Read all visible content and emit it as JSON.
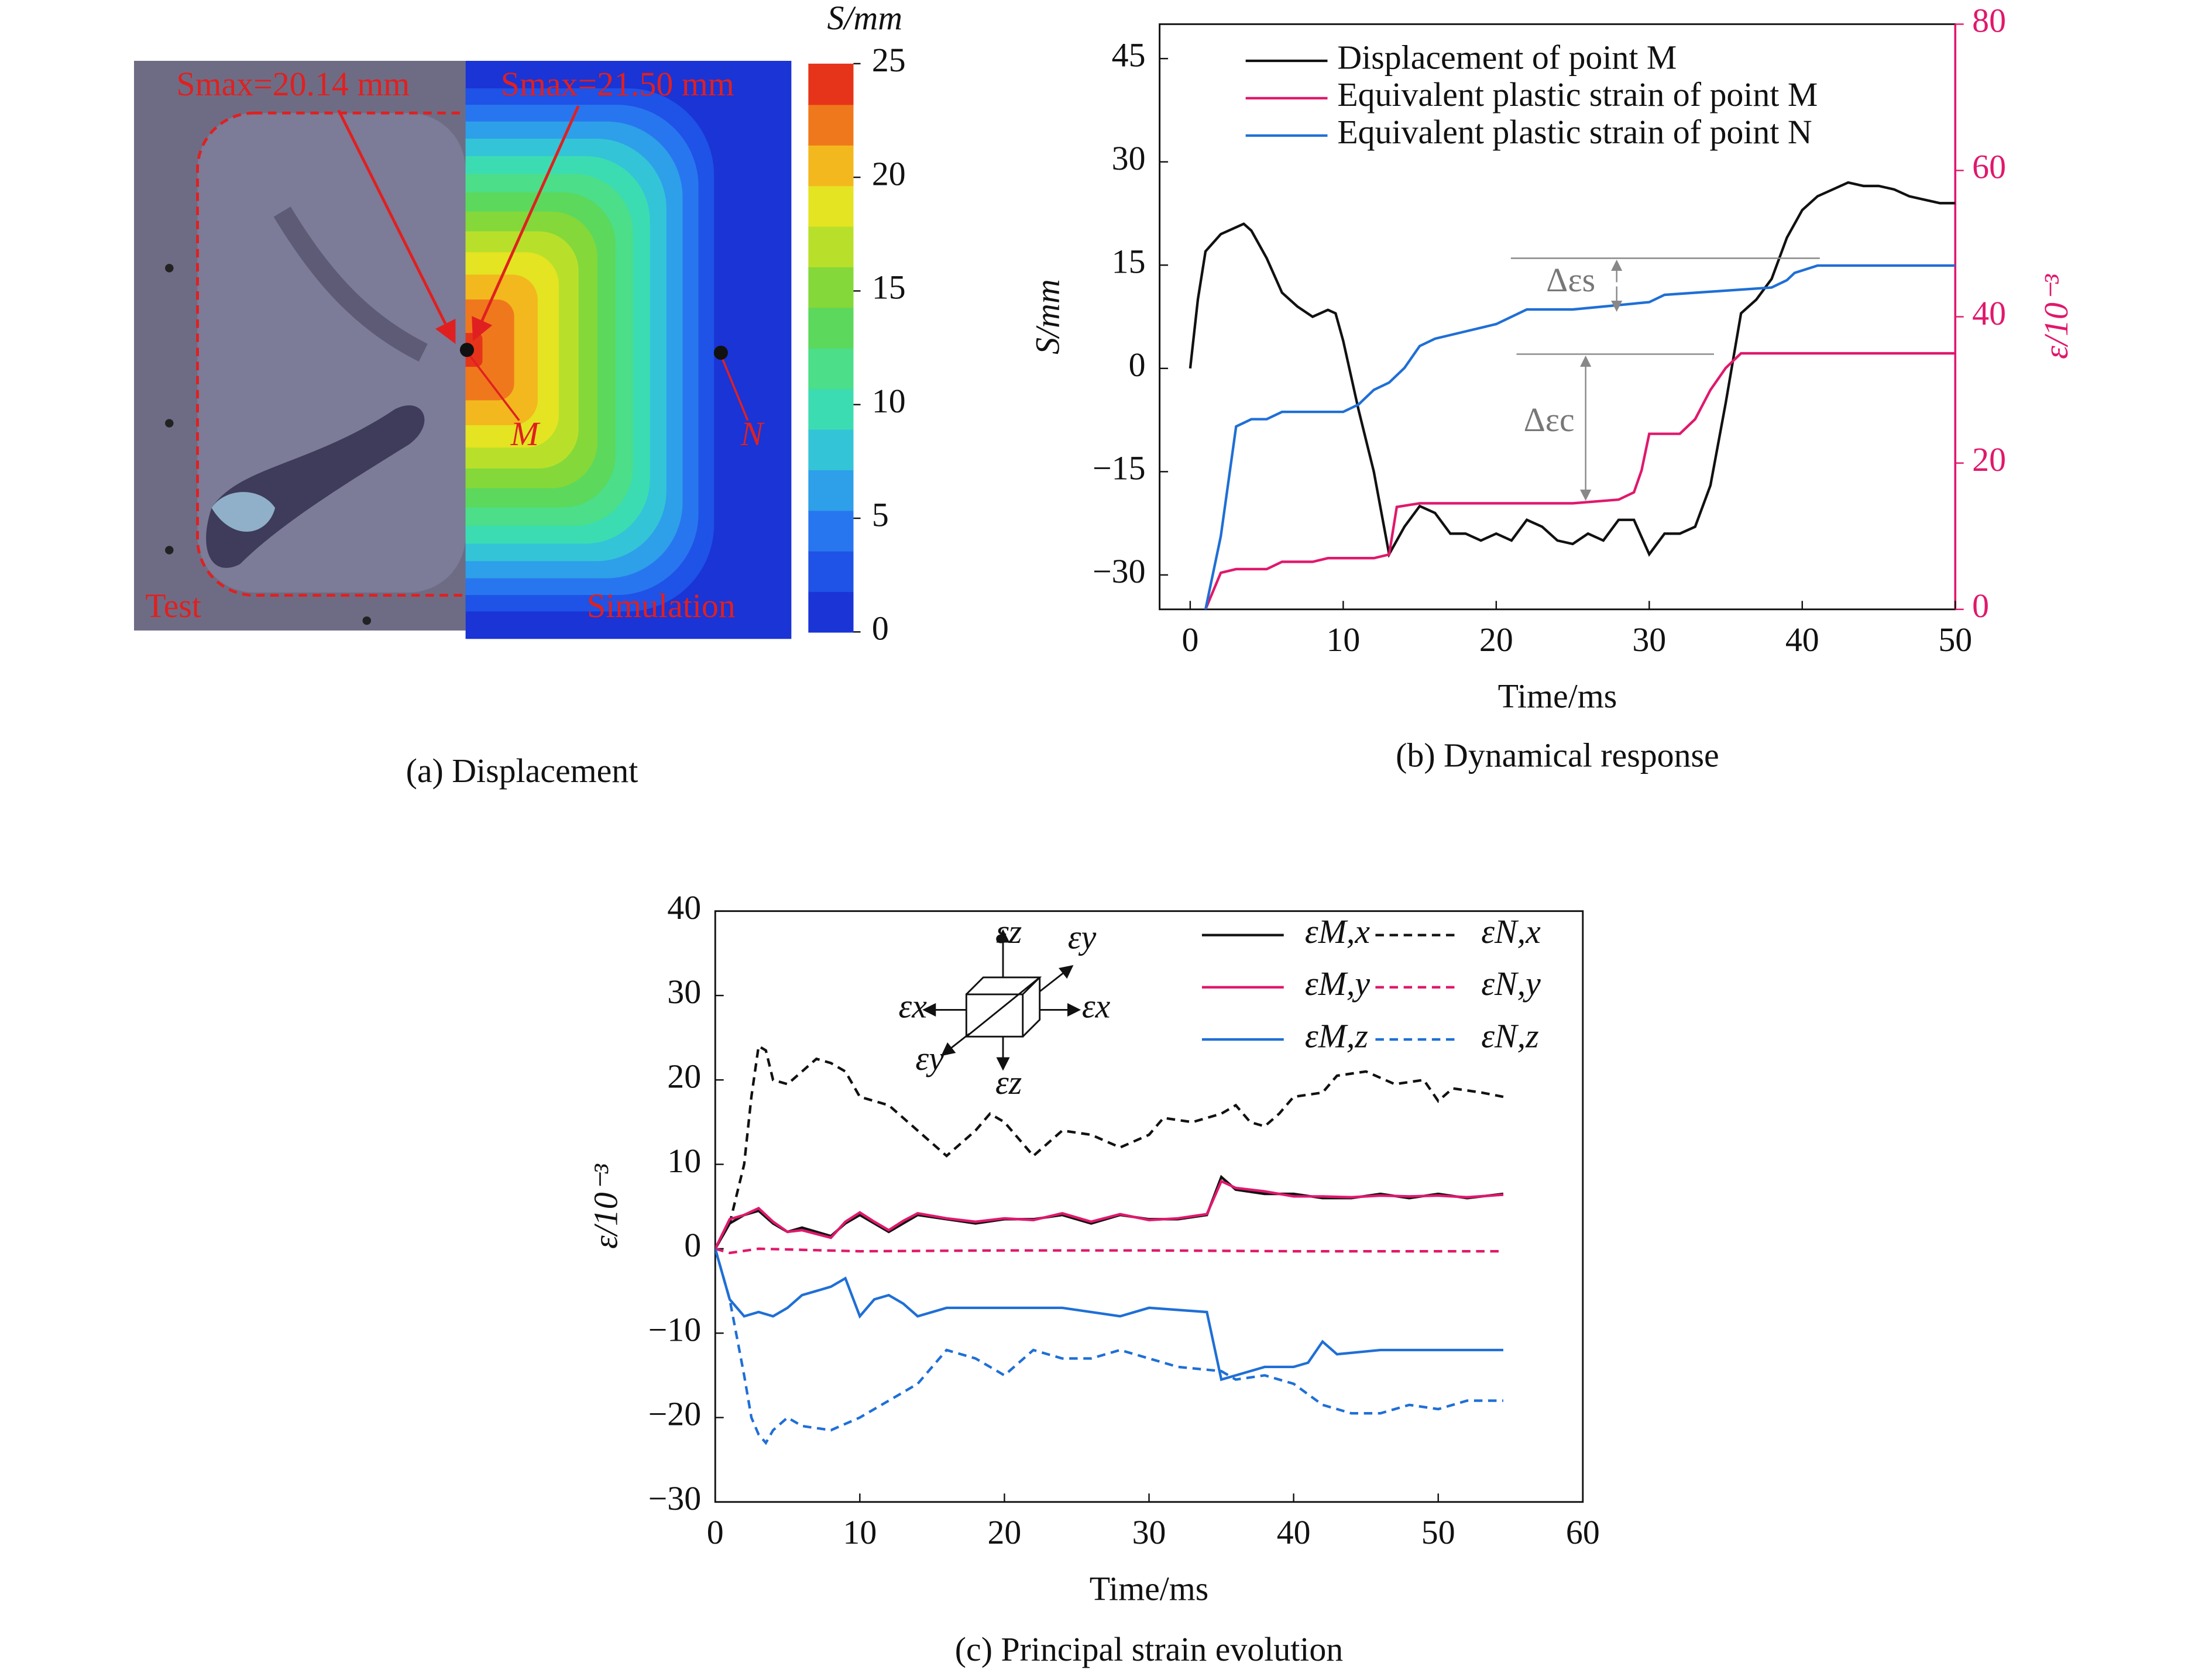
{
  "chart_data": [
    {
      "type": "contour",
      "caption": "(a) Displacement",
      "colorbar_title": "S/mm",
      "clim": [
        0,
        25
      ],
      "cticks": [
        0,
        5,
        10,
        15,
        20,
        25
      ],
      "colors": [
        "#1a34d6",
        "#1f52e6",
        "#2876ef",
        "#2e9fe9",
        "#33c4d8",
        "#3cdcb2",
        "#4cde88",
        "#5cd85c",
        "#84d83a",
        "#b8e02a",
        "#e4e422",
        "#f2b81e",
        "#f0781c",
        "#e6341a"
      ],
      "labels": {
        "test": "Test",
        "simulation": "Simulation",
        "point_m": "M",
        "point_n": "N"
      },
      "annotations": [
        "Smax=20.14 mm",
        "Smax=21.50 mm"
      ]
    },
    {
      "type": "line",
      "caption": "(b) Dynamical response",
      "xlabel": "Time/ms",
      "ylabel": "S/mm",
      "y2label": "ε/10⁻³",
      "xlim": [
        -2,
        50
      ],
      "xticks": [
        0,
        10,
        20,
        30,
        40,
        50
      ],
      "ylim": [
        -35,
        50
      ],
      "yticks": [
        {
          "value": -30,
          "label": "−30"
        },
        {
          "value": -15,
          "label": "−15"
        },
        0,
        15,
        30,
        45
      ],
      "y2lim": [
        0,
        80
      ],
      "y2ticks": [
        0,
        20,
        40,
        60,
        80
      ],
      "y2color": "#e0186c",
      "annotations": [
        "Δεs",
        "Δεc"
      ],
      "series": [
        {
          "name": "Displacement of point M",
          "color": "#111111",
          "x": [
            0,
            0.5,
            1,
            2,
            3.5,
            4,
            5,
            6,
            7,
            8,
            9,
            9.5,
            10,
            11,
            12,
            13,
            14,
            15,
            16,
            17,
            18,
            19,
            20,
            21,
            22,
            23,
            24,
            25,
            26,
            27,
            28,
            29,
            30,
            31,
            32,
            33,
            34,
            35,
            36,
            37,
            38,
            39,
            40,
            41,
            42,
            43,
            44,
            45,
            46,
            47,
            48,
            49,
            50
          ],
          "values": [
            0,
            10,
            17,
            19.5,
            21,
            20,
            16,
            11,
            9,
            7.5,
            8.5,
            8,
            4,
            -6,
            -15,
            -27,
            -23,
            -20,
            -21,
            -24,
            -24,
            -25,
            -24,
            -25,
            -22,
            -23,
            -25,
            -25.5,
            -24,
            -25,
            -22,
            -22,
            -27,
            -24,
            -24,
            -23,
            -17,
            -5,
            8,
            10,
            13,
            19,
            23,
            25,
            26,
            27,
            26.5,
            26.5,
            26,
            25,
            24.5,
            24,
            24
          ]
        },
        {
          "name": "Equivalent plastic strain of point M",
          "color": "#e0186c",
          "axis": "y2",
          "x": [
            1,
            2,
            3,
            5,
            6,
            8,
            9,
            12,
            13,
            13.5,
            15,
            25,
            28,
            29,
            29.5,
            30,
            32,
            33,
            34,
            35,
            36,
            50
          ],
          "values": [
            0,
            5,
            5.5,
            5.5,
            6.5,
            6.5,
            7,
            7,
            7.5,
            14,
            14.5,
            14.5,
            15,
            16,
            19,
            24,
            24,
            26,
            30,
            33,
            35,
            35
          ]
        },
        {
          "name": "Equivalent plastic strain of point N",
          "color": "#1f6fd6",
          "axis": "y2",
          "x": [
            1,
            2,
            3,
            4,
            5,
            6,
            10,
            11,
            12,
            13,
            14,
            15,
            16,
            18,
            20,
            22,
            25,
            30,
            31,
            38,
            39,
            39.5,
            41,
            50
          ],
          "values": [
            0,
            10,
            25,
            26,
            26,
            27,
            27,
            28,
            30,
            31,
            33,
            36,
            37,
            38,
            39,
            41,
            41,
            42,
            43,
            44,
            45,
            46,
            47,
            47
          ]
        }
      ]
    },
    {
      "type": "line",
      "caption": "(c) Principal strain evolution",
      "xlabel": "Time/ms",
      "ylabel": "ε/10⁻³",
      "xlim": [
        0,
        60
      ],
      "xticks": [
        0,
        10,
        20,
        30,
        40,
        50,
        60
      ],
      "ylim": [
        -30,
        40
      ],
      "yticks": [
        {
          "value": -30,
          "label": "−30"
        },
        {
          "value": -20,
          "label": "−20"
        },
        {
          "value": -10,
          "label": "−10"
        },
        0,
        10,
        20,
        30,
        40
      ],
      "inset_labels": [
        "εz",
        "εy",
        "εx",
        "εx",
        "εy",
        "εz"
      ],
      "series": [
        {
          "name": "εM,x",
          "color": "#111111",
          "style": "solid",
          "x": [
            0,
            1,
            2,
            3,
            4,
            5,
            6,
            8,
            9,
            10,
            11,
            12,
            13,
            14,
            16,
            18,
            20,
            22,
            24,
            26,
            28,
            30,
            32,
            34,
            35,
            36,
            38,
            40,
            42,
            44,
            46,
            48,
            50,
            52,
            54.5
          ],
          "values": [
            0,
            3,
            4,
            4.5,
            3,
            2,
            2.5,
            1.5,
            3,
            4,
            3,
            2,
            3,
            4,
            3.5,
            3,
            3.5,
            3.5,
            4,
            3,
            4,
            3.5,
            3.5,
            4,
            8.5,
            7,
            6.5,
            6.5,
            6,
            6,
            6.5,
            6,
            6.5,
            6,
            6.5
          ]
        },
        {
          "name": "εN,x",
          "color": "#111111",
          "style": "dashed",
          "x": [
            0,
            1,
            2,
            2.5,
            3,
            3.5,
            4,
            5,
            6,
            7,
            8,
            9,
            10,
            12,
            14,
            16,
            18,
            19,
            20,
            21,
            22,
            24,
            26,
            28,
            30,
            31,
            33,
            35,
            36,
            37,
            38,
            39,
            40,
            42,
            43,
            45,
            47,
            49,
            50,
            51,
            53,
            54.5
          ],
          "values": [
            0,
            3,
            10,
            18,
            24,
            23.5,
            20,
            19.5,
            21,
            22.5,
            22,
            21,
            18,
            17,
            14,
            11,
            14,
            16,
            15,
            13,
            11,
            14,
            13.5,
            12,
            13.5,
            15.5,
            15,
            16,
            17,
            15,
            14.5,
            16,
            18,
            18.5,
            20.5,
            21,
            19.5,
            20,
            17.5,
            19,
            18.5,
            18
          ]
        },
        {
          "name": "εM,y",
          "color": "#e0186c",
          "style": "solid",
          "x": [
            0,
            1,
            2,
            3,
            4,
            5,
            6,
            8,
            9,
            10,
            11,
            12,
            13,
            14,
            16,
            18,
            20,
            22,
            24,
            26,
            28,
            30,
            32,
            34,
            35,
            36,
            38,
            40,
            42,
            44,
            46,
            48,
            50,
            52,
            54.5
          ],
          "values": [
            0,
            3.5,
            4,
            4.8,
            3.2,
            2,
            2.2,
            1.3,
            3.2,
            4.3,
            3.2,
            2.2,
            3.3,
            4.2,
            3.6,
            3.2,
            3.6,
            3.4,
            4.2,
            3.2,
            4.1,
            3.4,
            3.6,
            4.1,
            8,
            7.2,
            6.8,
            6.2,
            6.2,
            6.1,
            6.3,
            6.2,
            6.3,
            6.1,
            6.4
          ]
        },
        {
          "name": "εN,y",
          "color": "#e0186c",
          "style": "dashed",
          "x": [
            0,
            1,
            3,
            10,
            20,
            30,
            40,
            54.5
          ],
          "values": [
            0,
            -0.5,
            0,
            -0.3,
            -0.2,
            -0.2,
            -0.3,
            -0.3
          ]
        },
        {
          "name": "εM,z",
          "color": "#1f6fd6",
          "style": "solid",
          "x": [
            0,
            1,
            2,
            3,
            4,
            5,
            6,
            7,
            8,
            9,
            10,
            11,
            12,
            13,
            14,
            16,
            20,
            24,
            28,
            30,
            34,
            35,
            36,
            38,
            40,
            41,
            42,
            43,
            46,
            50,
            54.5
          ],
          "values": [
            0,
            -6,
            -8,
            -7.5,
            -8,
            -7,
            -5.5,
            -5,
            -4.5,
            -3.5,
            -8,
            -6,
            -5.5,
            -6.5,
            -8,
            -7,
            -7,
            -7,
            -8,
            -7,
            -7.5,
            -15.5,
            -15,
            -14,
            -14,
            -13.5,
            -11,
            -12.5,
            -12,
            -12,
            -12
          ]
        },
        {
          "name": "εN,z",
          "color": "#1f6fd6",
          "style": "dashed",
          "x": [
            0,
            1,
            2,
            2.5,
            3,
            3.5,
            4,
            5,
            6,
            8,
            10,
            12,
            14,
            16,
            18,
            20,
            22,
            24,
            26,
            28,
            30,
            32,
            35,
            36,
            38,
            40,
            42,
            44,
            46,
            48,
            50,
            52,
            54.5
          ],
          "values": [
            0,
            -6,
            -15,
            -20,
            -22,
            -23,
            -21.5,
            -20,
            -21,
            -21.5,
            -20,
            -18,
            -16,
            -12,
            -13,
            -15,
            -12,
            -13,
            -13,
            -12,
            -13,
            -14,
            -14.5,
            -15.5,
            -15,
            -16,
            -18.5,
            -19.5,
            -19.5,
            -18.5,
            -19,
            -18,
            -18
          ]
        }
      ]
    }
  ]
}
